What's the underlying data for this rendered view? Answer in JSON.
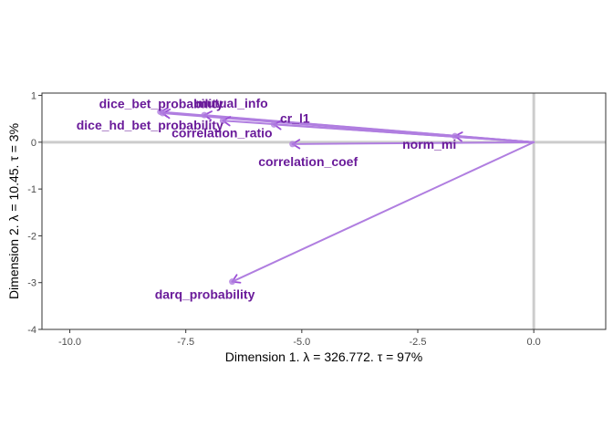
{
  "chart_data": {
    "type": "scatter",
    "title": "",
    "xlabel": "Dimension 1.   λ = 326.772.  τ = 97%",
    "ylabel": "Dimension 2.   λ = 10.45.  τ = 3%",
    "xlim": [
      -10.6,
      1.55
    ],
    "ylim": [
      -4.0,
      1.05
    ],
    "x_ticks": [
      -10.0,
      -7.5,
      -5.0,
      -2.5,
      0.0
    ],
    "x_tick_labels": [
      "-10.0",
      "-7.5",
      "-5.0",
      "-2.5",
      "0.0"
    ],
    "y_ticks": [
      1,
      0,
      -1,
      -2,
      -3,
      -4
    ],
    "y_tick_labels": [
      "1",
      "0",
      "-1",
      "-2",
      "-3",
      "-4"
    ],
    "grid": false,
    "reference_lines": {
      "x": 0,
      "y": 0
    },
    "origin": [
      0,
      0
    ],
    "colors": {
      "arrow_light": "#b07ee0",
      "arrow_dark": "#9b4fd6",
      "label": "#6a1b9a",
      "reference_line": "#cccccc",
      "axis_frame": "#333333"
    },
    "points": [
      {
        "label": "dice_bet_probability",
        "x": -8.05,
        "y": 0.65
      },
      {
        "label": "dice_hd_bet_probability",
        "x": -8.0,
        "y": 0.62
      },
      {
        "label": "mutual_info",
        "x": -7.1,
        "y": 0.58
      },
      {
        "label": "correlation_ratio",
        "x": -6.7,
        "y": 0.46
      },
      {
        "label": "cr_l1",
        "x": -5.6,
        "y": 0.38
      },
      {
        "label": "correlation_coef",
        "x": -5.2,
        "y": -0.04
      },
      {
        "label": "norm_mi",
        "x": -1.7,
        "y": 0.13
      },
      {
        "label": "darq_probability",
        "x": -6.5,
        "y": -2.98
      }
    ]
  }
}
